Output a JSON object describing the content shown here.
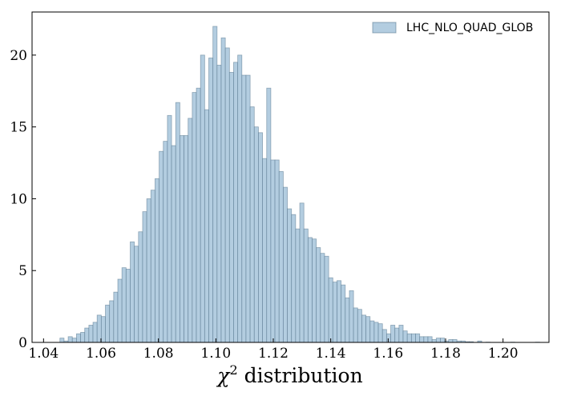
{
  "chart_data": {
    "type": "bar",
    "title": "",
    "xlabel_symbol": "χ",
    "xlabel_superscript": "2",
    "xlabel_text": " distribution",
    "ylabel": "",
    "xlim": [
      1.036,
      1.216
    ],
    "ylim": [
      0,
      23
    ],
    "xticks": [
      1.04,
      1.06,
      1.08,
      1.1,
      1.12,
      1.14,
      1.16,
      1.18,
      1.2
    ],
    "xtick_labels": [
      "1.04",
      "1.06",
      "1.08",
      "1.10",
      "1.12",
      "1.14",
      "1.16",
      "1.18",
      "1.20"
    ],
    "yticks": [
      0,
      5,
      10,
      15,
      20
    ],
    "ytick_labels": [
      "0",
      "5",
      "10",
      "15",
      "20"
    ],
    "bin_start": 1.0457,
    "bin_width": 0.00144,
    "values": [
      0.3,
      0.1,
      0.4,
      0.3,
      0.6,
      0.7,
      1.0,
      1.2,
      1.4,
      1.9,
      1.8,
      2.6,
      2.9,
      3.5,
      4.4,
      5.2,
      5.1,
      7.0,
      6.7,
      7.7,
      9.1,
      10.0,
      10.6,
      11.4,
      13.3,
      14.0,
      15.8,
      13.7,
      16.7,
      14.4,
      14.4,
      15.6,
      17.4,
      17.7,
      20.0,
      16.2,
      19.8,
      22.0,
      19.3,
      21.2,
      20.5,
      18.8,
      19.5,
      20.0,
      18.6,
      18.6,
      16.4,
      15.0,
      14.6,
      12.8,
      17.7,
      12.7,
      12.7,
      11.9,
      10.8,
      9.3,
      8.9,
      7.9,
      9.7,
      7.9,
      7.3,
      7.2,
      6.6,
      6.2,
      6.0,
      4.5,
      4.2,
      4.3,
      4.0,
      3.1,
      3.6,
      2.4,
      2.3,
      1.9,
      1.8,
      1.5,
      1.4,
      1.3,
      0.9,
      0.6,
      1.2,
      1.0,
      1.2,
      0.8,
      0.6,
      0.6,
      0.6,
      0.4,
      0.4,
      0.4,
      0.2,
      0.3,
      0.3,
      0.1,
      0.2,
      0.2,
      0.1,
      0.1,
      0.05,
      0.05,
      0.0,
      0.1,
      0.0,
      0.02,
      0.0,
      0.0,
      0.0,
      0.0,
      0.0,
      0.02,
      0.0,
      0.0,
      0.0,
      0.0,
      0.0,
      0.02,
      0.0,
      0.0
    ],
    "bar_fill": "#b3cde0",
    "bar_edge": "#4f6f86",
    "bar_edge_opacity": 0.55,
    "frame_color": "#000000",
    "legend": {
      "label": "LHC_NLO_QUAD_GLOB",
      "placement": "top-right"
    }
  }
}
